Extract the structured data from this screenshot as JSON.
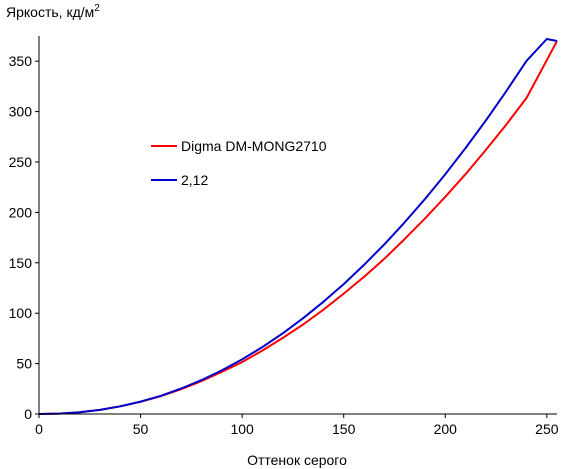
{
  "chart_data": {
    "type": "line",
    "ylabel": "Яркость, кд/м",
    "ylabel_superscript": "2",
    "xlabel": "Оттенок серого",
    "xlim": [
      0,
      255
    ],
    "ylim": [
      0,
      375
    ],
    "x_ticks": [
      "0",
      "50",
      "100",
      "150",
      "200",
      "250"
    ],
    "y_ticks": [
      "0",
      "50",
      "100",
      "150",
      "200",
      "250",
      "300",
      "350"
    ],
    "grid": false,
    "legend_position": "center-left",
    "series": [
      {
        "name": "Digma DM-MONG2710",
        "color": "#ff0000",
        "x": [
          0,
          10,
          20,
          30,
          40,
          50,
          60,
          70,
          80,
          90,
          100,
          110,
          120,
          130,
          140,
          150,
          160,
          170,
          180,
          190,
          200,
          210,
          220,
          230,
          240,
          250,
          255
        ],
        "y": [
          0,
          0.4,
          1.7,
          4.1,
          7.6,
          12.1,
          17.8,
          24.6,
          32.6,
          41.8,
          51.5,
          63.0,
          75.5,
          88.8,
          103.5,
          119.4,
          136.0,
          154.0,
          173.5,
          194.0,
          215.5,
          238.0,
          262.0,
          287.0,
          313.5,
          351.0,
          370.0
        ]
      },
      {
        "name": "2,12",
        "color": "#0000cc",
        "x": [
          0,
          10,
          20,
          30,
          40,
          50,
          60,
          70,
          80,
          90,
          100,
          110,
          120,
          130,
          140,
          150,
          160,
          170,
          180,
          190,
          200,
          210,
          220,
          230,
          240,
          250,
          255
        ],
        "y": [
          0,
          0.4,
          1.7,
          4.1,
          7.6,
          12.3,
          18.1,
          25.3,
          33.6,
          43.3,
          54.2,
          66.5,
          80.1,
          95.0,
          111.3,
          128.9,
          147.9,
          168.3,
          190.1,
          213.3,
          237.9,
          263.9,
          291.3,
          320.1,
          350.3,
          382.0,
          370.0
        ]
      }
    ]
  }
}
